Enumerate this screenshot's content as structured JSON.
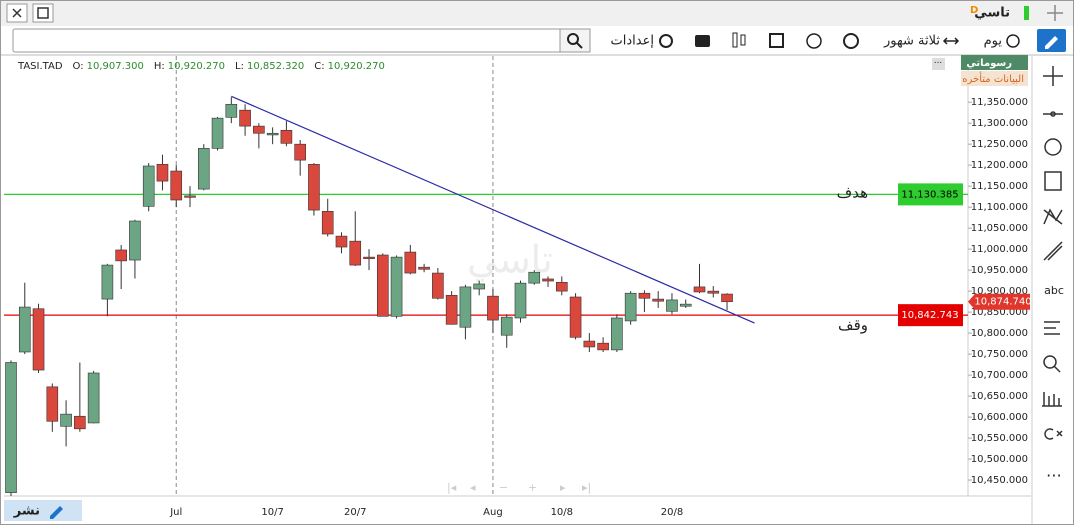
{
  "window": {
    "title": "تاسي",
    "badge": "D"
  },
  "toolbar": {
    "settings": "إعدادات",
    "period": "ثلاثة شهور",
    "interval": "يوم"
  },
  "badges": {
    "my_drawings": "رسوماتي",
    "delayed": "البيانات متأخره"
  },
  "share": "نشر",
  "sidebar": {
    "text_tool": "abc"
  },
  "chart_data": {
    "type": "candlestick",
    "symbol": "TASI.TAD",
    "ohlc_header": [
      {
        "label": "O:",
        "value": "10,907.300"
      },
      {
        "label": "H:",
        "value": "10,920.270"
      },
      {
        "label": "L:",
        "value": "10,852.320"
      },
      {
        "label": "C:",
        "value": "10,920.270"
      }
    ],
    "watermark": "تاسي",
    "categories": [
      null,
      null,
      null,
      null,
      null,
      null,
      null,
      null,
      null,
      null,
      null,
      null,
      "Jul",
      null,
      null,
      null,
      null,
      null,
      null,
      "10/7",
      null,
      null,
      null,
      null,
      null,
      "20/7",
      null,
      null,
      null,
      null,
      null,
      null,
      null,
      null,
      null,
      "Aug",
      null,
      null,
      null,
      null,
      "10/8",
      null,
      null,
      null,
      null,
      null,
      null,
      null,
      "20/8",
      null,
      null,
      null,
      null
    ],
    "open": [
      10420,
      10755,
      10858,
      10672,
      10578,
      10602,
      10586,
      10881,
      10998,
      10974,
      11102,
      11202,
      11186,
      11127,
      11143,
      11240,
      11314,
      11331,
      11293,
      11272,
      11283,
      11250,
      11202,
      11090,
      11031,
      11019,
      10981,
      10986,
      10840,
      10993,
      10957,
      10943,
      10890,
      10814,
      10905,
      10888,
      10795,
      10836,
      10919,
      10929,
      10921,
      10886,
      10781,
      10776,
      10760,
      10829,
      10895,
      10881,
      10852,
      10864,
      10910,
      10900,
      10893
    ],
    "high": [
      10735,
      10920,
      10870,
      10680,
      10640,
      10730,
      10710,
      10965,
      11010,
      11070,
      11205,
      11225,
      11200,
      11150,
      11250,
      11315,
      11362,
      11345,
      11300,
      11290,
      11305,
      11260,
      11205,
      11120,
      11040,
      11090,
      11000,
      10990,
      10985,
      11010,
      10965,
      10955,
      10900,
      10915,
      10925,
      10905,
      10845,
      10925,
      10950,
      10935,
      10935,
      10895,
      10800,
      10790,
      10845,
      10900,
      10902,
      10900,
      10895,
      10880,
      10965,
      10912,
      10895
    ],
    "low": [
      10412,
      10750,
      10705,
      10565,
      10530,
      10565,
      10585,
      10840,
      10905,
      10930,
      11090,
      11140,
      11100,
      11100,
      11140,
      11235,
      11300,
      11270,
      11240,
      11250,
      11245,
      11175,
      11080,
      11030,
      10990,
      10960,
      10950,
      10840,
      10835,
      10940,
      10945,
      10880,
      10820,
      10785,
      10890,
      10800,
      10765,
      10825,
      10915,
      10910,
      10890,
      10785,
      10755,
      10755,
      10755,
      10820,
      10850,
      10860,
      10845,
      10860,
      10895,
      10885,
      10855
    ],
    "close": [
      10730,
      10862,
      10712,
      10590,
      10607,
      10572,
      10705,
      10962,
      10972,
      11067,
      11198,
      11162,
      11117,
      11125,
      11240,
      11312,
      11345,
      11293,
      11276,
      11276,
      11252,
      11212,
      11093,
      11036,
      11005,
      10962,
      10979,
      10840,
      10981,
      10943,
      10952,
      10883,
      10821,
      10910,
      10917,
      10831,
      10838,
      10919,
      10945,
      10924,
      10900,
      10790,
      10767,
      10760,
      10836,
      10895,
      10883,
      10876,
      10879,
      10869,
      10898,
      10895,
      10874.74
    ],
    "up_color": "#6ba583",
    "down_color": "#d9473d",
    "ylim": [
      10412,
      11460
    ],
    "yticks": [
      {
        "value": 10450,
        "label": "10,450.000"
      },
      {
        "value": 10500,
        "label": "10,500.000"
      },
      {
        "value": 10550,
        "label": "10,550.000"
      },
      {
        "value": 10600,
        "label": "10,600.000"
      },
      {
        "value": 10650,
        "label": "10,650.000"
      },
      {
        "value": 10700,
        "label": "10,700.000"
      },
      {
        "value": 10750,
        "label": "10,750.000"
      },
      {
        "value": 10800,
        "label": "10,800.000"
      },
      {
        "value": 10850,
        "label": "10,850.000"
      },
      {
        "value": 10900,
        "label": "10,900.000"
      },
      {
        "value": 10950,
        "label": "10,950.000"
      },
      {
        "value": 11000,
        "label": "11,000.000"
      },
      {
        "value": 11050,
        "label": "11,050.000"
      },
      {
        "value": 11100,
        "label": "11,100.000"
      },
      {
        "value": 11150,
        "label": "11,150.000"
      },
      {
        "value": 11200,
        "label": "11,200.000"
      },
      {
        "value": 11250,
        "label": "11,250.000"
      },
      {
        "value": 11300,
        "label": "11,300.000"
      },
      {
        "value": 11350,
        "label": "11,350.000"
      }
    ],
    "hlines": [
      {
        "value": 11130.385,
        "label": "11,130.385",
        "color": "#2ecc2e",
        "annotation": "هدف"
      },
      {
        "value": 10842.743,
        "label": "10,842.743",
        "color": "#e50000",
        "annotation": "وقف"
      }
    ],
    "last_price": {
      "value": 10874.74,
      "label": "10,874.740",
      "color": "#e0362c"
    },
    "trendline": {
      "x": [
        16,
        54
      ],
      "y": [
        11364,
        10824
      ],
      "color": "#2b2ba6"
    }
  }
}
